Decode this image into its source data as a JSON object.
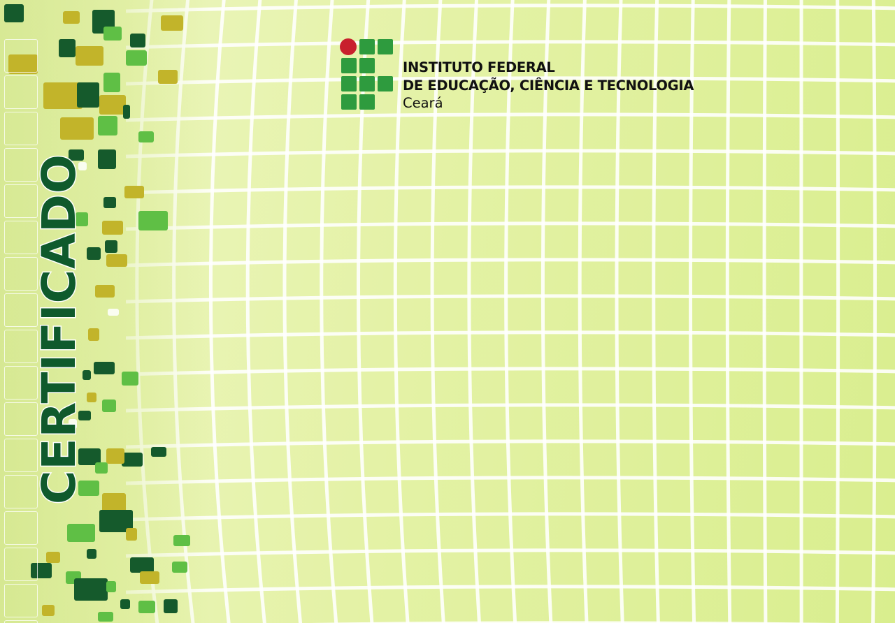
{
  "certificate": {
    "title": "CERTIFICADO"
  },
  "institution": {
    "line1": "INSTITUTO FEDERAL",
    "line2": "DE EDUCAÇÃO, CIÊNCIA E TECNOLOGIA",
    "line3": "Ceará"
  },
  "colors": {
    "dark_green": "#0f5a2c",
    "logo_green": "#2e9b3e",
    "logo_red": "#c8202d",
    "light_green": "#6cc04a",
    "olive": "#c4b62a"
  }
}
